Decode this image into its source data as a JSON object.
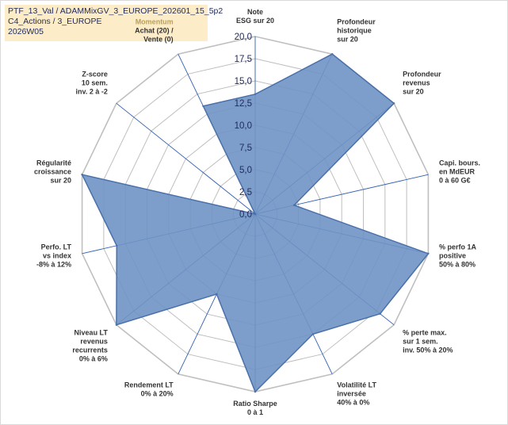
{
  "info_box": {
    "line1": "PTF_13_Val / ADAMMixGV_3_EUROPE_202601_15_5p2",
    "line2": "C4_Actions / 3_EUROPE",
    "line3": "2026W05"
  },
  "colors": {
    "fill": "#6f93c4",
    "stroke": "#4a70aa",
    "grid": "#bfbfbf",
    "spoke": "#2f5fb3",
    "highlight_label": "#b8a15a"
  },
  "chart_data": {
    "type": "radar",
    "title": "",
    "rlim": [
      0,
      20
    ],
    "tick_labels": [
      "0,0",
      "2,5",
      "5,0",
      "7,5",
      "10,0",
      "12,5",
      "15,0",
      "17,5",
      "20,0"
    ],
    "ticks": [
      0,
      2.5,
      5,
      7.5,
      10,
      12.5,
      15,
      17.5,
      20
    ],
    "axes": [
      [
        "Note",
        "ESG sur 20"
      ],
      [
        "Profondeur",
        "historique",
        "sur 20"
      ],
      [
        "Profondeur",
        "revenus",
        "sur 20"
      ],
      [
        "Capi. bours.",
        "en MdEUR",
        "0 à 60 G€"
      ],
      [
        "% perfo 1A",
        "positive",
        "50% à 80%"
      ],
      [
        "% perte max.",
        "sur 1 sem.",
        "inv. 50% à 20%"
      ],
      [
        "Volatilité LT",
        "inversée",
        "40% à 0%"
      ],
      [
        "Ratio Sharpe",
        "0 à 1"
      ],
      [
        "Rendement LT",
        "0% à 20%"
      ],
      [
        "Niveau LT",
        "revenus",
        "recurrents",
        "0% à 6%"
      ],
      [
        "Perfo. LT",
        "vs index",
        "-8% à 12%"
      ],
      [
        "Régularité",
        "croissance",
        "sur 20"
      ],
      [
        "Z-score",
        "10 sem.",
        "inv. 2 à -2"
      ],
      [
        "Momentum",
        "Achat (20) /",
        "Vente (0)"
      ]
    ],
    "highlight_axis_line": [
      13,
      0
    ],
    "series": [
      {
        "name": "PTF_13_Val",
        "values": [
          13.5,
          20,
          20,
          4.5,
          20,
          18,
          15,
          20,
          10,
          20,
          16,
          20,
          0,
          13.5
        ]
      }
    ]
  }
}
